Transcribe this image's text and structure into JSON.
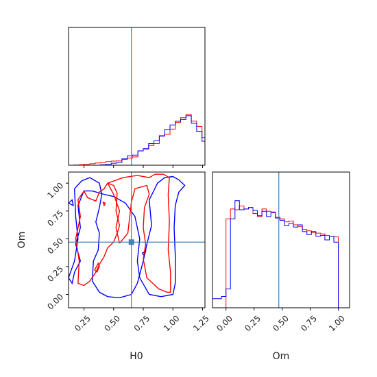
{
  "chart_data": {
    "type": "corner",
    "parameters": [
      "H0",
      "Om"
    ],
    "truth": {
      "H0": 0.65,
      "Om": 0.47
    },
    "colors": {
      "series_a": "#ff0000",
      "series_b": "#0000ff",
      "truth": "#4682b4",
      "axes": "#000000"
    },
    "axis_ranges": {
      "H0": [
        0.12,
        1.27
      ],
      "Om": [
        -0.12,
        1.1
      ]
    },
    "ticks": {
      "H0": [
        "0.25",
        "0.50",
        "0.75",
        "1.00",
        "1.25"
      ],
      "Om": [
        "0.00",
        "0.25",
        "0.50",
        "0.75",
        "1.00"
      ]
    },
    "tick_values": {
      "H0": [
        0.25,
        0.5,
        0.75,
        1.0,
        1.25
      ],
      "Om": [
        0.0,
        0.25,
        0.5,
        0.75,
        1.0
      ]
    },
    "xlabels": {
      "H0": "H0",
      "Om": "Om"
    },
    "ylabel": "Om",
    "hist_H0": {
      "bin_edges": [
        0.12,
        0.165,
        0.21,
        0.255,
        0.3,
        0.345,
        0.39,
        0.435,
        0.48,
        0.525,
        0.57,
        0.615,
        0.66,
        0.705,
        0.75,
        0.795,
        0.84,
        0.885,
        0.93,
        0.975,
        1.02,
        1.065,
        1.11,
        1.155,
        1.2,
        1.245,
        1.29
      ],
      "series_a_counts": [
        0,
        0.3,
        0.6,
        1.2,
        1.8,
        2.8,
        3.5,
        4.5,
        5.2,
        5.5,
        7.4,
        9.0,
        10.5,
        18.0,
        20.4,
        25.0,
        27.4,
        37.5,
        39.2,
        45.8,
        54.3,
        60.3,
        64.3,
        56.0,
        49.3,
        35.0
      ],
      "series_b_counts": [
        0,
        0,
        0,
        0,
        0,
        0,
        0.5,
        1.2,
        2.5,
        3.5,
        8.0,
        11.8,
        12.8,
        18.3,
        21.1,
        27.4,
        31.2,
        36.9,
        45.4,
        51.2,
        55.8,
        58.0,
        62.8,
        53.2,
        43.0,
        30.5
      ],
      "ylim": [
        0,
        175
      ]
    },
    "hist_Om": {
      "bin_edges": [
        -0.12,
        -0.04,
        0.0,
        0.04,
        0.08,
        0.12,
        0.16,
        0.2,
        0.24,
        0.28,
        0.32,
        0.36,
        0.4,
        0.44,
        0.48,
        0.52,
        0.56,
        0.6,
        0.64,
        0.68,
        0.72,
        0.76,
        0.8,
        0.84,
        0.88,
        0.92,
        0.96,
        1.0,
        1.08
      ],
      "series_a_counts": [
        0,
        0,
        118,
        131,
        130,
        135,
        131,
        133,
        125,
        121,
        131,
        128,
        127,
        120,
        118,
        114,
        115,
        110,
        108,
        104,
        102,
        100,
        99,
        98,
        96,
        95,
        94,
        0
      ],
      "series_b_counts": [
        12,
        15,
        25,
        118,
        142,
        130,
        131,
        133,
        129,
        122,
        128,
        121,
        126,
        119,
        116,
        109,
        112,
        107,
        110,
        101,
        97,
        101,
        95,
        96,
        90,
        95,
        87,
        0
      ],
      "ylim": [
        0,
        180
      ]
    },
    "contour_series_a": [
      [
        [
          0.25,
          0.93
        ],
        [
          0.28,
          0.87
        ],
        [
          0.35,
          0.84
        ],
        [
          0.38,
          0.92
        ],
        [
          0.42,
          0.95
        ],
        [
          0.45,
          1.0
        ],
        [
          0.5,
          0.98
        ],
        [
          0.53,
          0.91
        ],
        [
          0.52,
          0.75
        ],
        [
          0.55,
          0.62
        ],
        [
          0.53,
          0.55
        ],
        [
          0.5,
          0.47
        ],
        [
          0.45,
          0.42
        ],
        [
          0.42,
          0.34
        ],
        [
          0.38,
          0.27
        ],
        [
          0.35,
          0.2
        ],
        [
          0.3,
          0.12
        ],
        [
          0.25,
          0.08
        ],
        [
          0.2,
          0.1
        ],
        [
          0.21,
          0.3
        ],
        [
          0.18,
          0.5
        ],
        [
          0.22,
          0.7
        ],
        [
          0.2,
          0.85
        ],
        [
          0.25,
          0.93
        ]
      ],
      [
        [
          0.41,
          0.83
        ],
        [
          0.43,
          0.82
        ],
        [
          0.42,
          0.8
        ],
        [
          0.41,
          0.83
        ]
      ],
      [
        [
          0.36,
          0.2
        ],
        [
          0.38,
          0.25
        ],
        [
          0.37,
          0.28
        ],
        [
          0.34,
          0.22
        ],
        [
          0.36,
          0.2
        ]
      ]
    ],
    "contour_series_a2": [
      [
        [
          0.55,
          0.46
        ],
        [
          0.62,
          0.55
        ],
        [
          0.65,
          0.83
        ],
        [
          0.68,
          0.95
        ],
        [
          0.78,
          0.98
        ],
        [
          0.8,
          0.9
        ],
        [
          0.76,
          0.78
        ],
        [
          0.75,
          0.6
        ],
        [
          0.77,
          0.45
        ],
        [
          0.75,
          0.32
        ],
        [
          0.78,
          0.15
        ],
        [
          0.88,
          0.05
        ],
        [
          0.95,
          0.02
        ],
        [
          0.98,
          0.02
        ],
        [
          0.98,
          0.2
        ],
        [
          0.96,
          0.4
        ],
        [
          0.97,
          0.65
        ],
        [
          0.96,
          0.9
        ],
        [
          0.97,
          1.05
        ],
        [
          0.92,
          1.08
        ],
        [
          0.85,
          1.08
        ],
        [
          0.8,
          1.05
        ],
        [
          0.7,
          1.07
        ],
        [
          0.58,
          1.05
        ],
        [
          0.45,
          1.0
        ],
        [
          0.5,
          0.9
        ],
        [
          0.55,
          0.75
        ],
        [
          0.52,
          0.6
        ],
        [
          0.55,
          0.46
        ]
      ]
    ],
    "contour_series_b": [
      [
        [
          0.17,
          0.95
        ],
        [
          0.23,
          1.02
        ],
        [
          0.3,
          1.05
        ],
        [
          0.38,
          1.0
        ],
        [
          0.4,
          0.9
        ],
        [
          0.38,
          0.78
        ],
        [
          0.35,
          0.65
        ],
        [
          0.38,
          0.55
        ],
        [
          0.37,
          0.4
        ],
        [
          0.33,
          0.3
        ],
        [
          0.32,
          0.12
        ],
        [
          0.38,
          0.02
        ],
        [
          0.45,
          -0.02
        ],
        [
          0.55,
          -0.03
        ],
        [
          0.65,
          0.0
        ],
        [
          0.7,
          0.1
        ],
        [
          0.75,
          0.3
        ],
        [
          0.78,
          0.45
        ],
        [
          0.82,
          0.62
        ],
        [
          0.8,
          0.85
        ],
        [
          0.87,
          1.0
        ],
        [
          0.93,
          1.05
        ],
        [
          1.0,
          1.06
        ],
        [
          1.05,
          1.03
        ],
        [
          1.1,
          0.98
        ],
        [
          1.05,
          0.92
        ],
        [
          1.02,
          0.8
        ],
        [
          1.01,
          0.6
        ],
        [
          1.02,
          0.35
        ],
        [
          1.02,
          0.1
        ],
        [
          1.0,
          0.0
        ],
        [
          0.9,
          -0.02
        ],
        [
          0.8,
          0.0
        ],
        [
          0.72,
          0.15
        ],
        [
          0.7,
          0.3
        ],
        [
          0.72,
          0.5
        ],
        [
          0.68,
          0.7
        ],
        [
          0.6,
          0.82
        ],
        [
          0.5,
          0.88
        ],
        [
          0.42,
          0.9
        ],
        [
          0.32,
          0.93
        ],
        [
          0.25,
          0.93
        ],
        [
          0.2,
          0.8
        ],
        [
          0.22,
          0.6
        ],
        [
          0.18,
          0.45
        ],
        [
          0.22,
          0.3
        ],
        [
          0.17,
          0.2
        ],
        [
          0.15,
          0.1
        ],
        [
          0.12,
          0.15
        ],
        [
          0.17,
          0.3
        ],
        [
          0.2,
          0.5
        ],
        [
          0.18,
          0.7
        ],
        [
          0.17,
          0.95
        ]
      ]
    ],
    "contour_series_b2": [
      [
        [
          0.12,
          0.82
        ],
        [
          0.15,
          0.85
        ],
        [
          0.16,
          0.8
        ],
        [
          0.12,
          0.82
        ]
      ],
      [
        [
          0.74,
          0.37
        ],
        [
          0.77,
          0.39
        ],
        [
          0.76,
          0.35
        ],
        [
          0.74,
          0.37
        ]
      ]
    ]
  }
}
